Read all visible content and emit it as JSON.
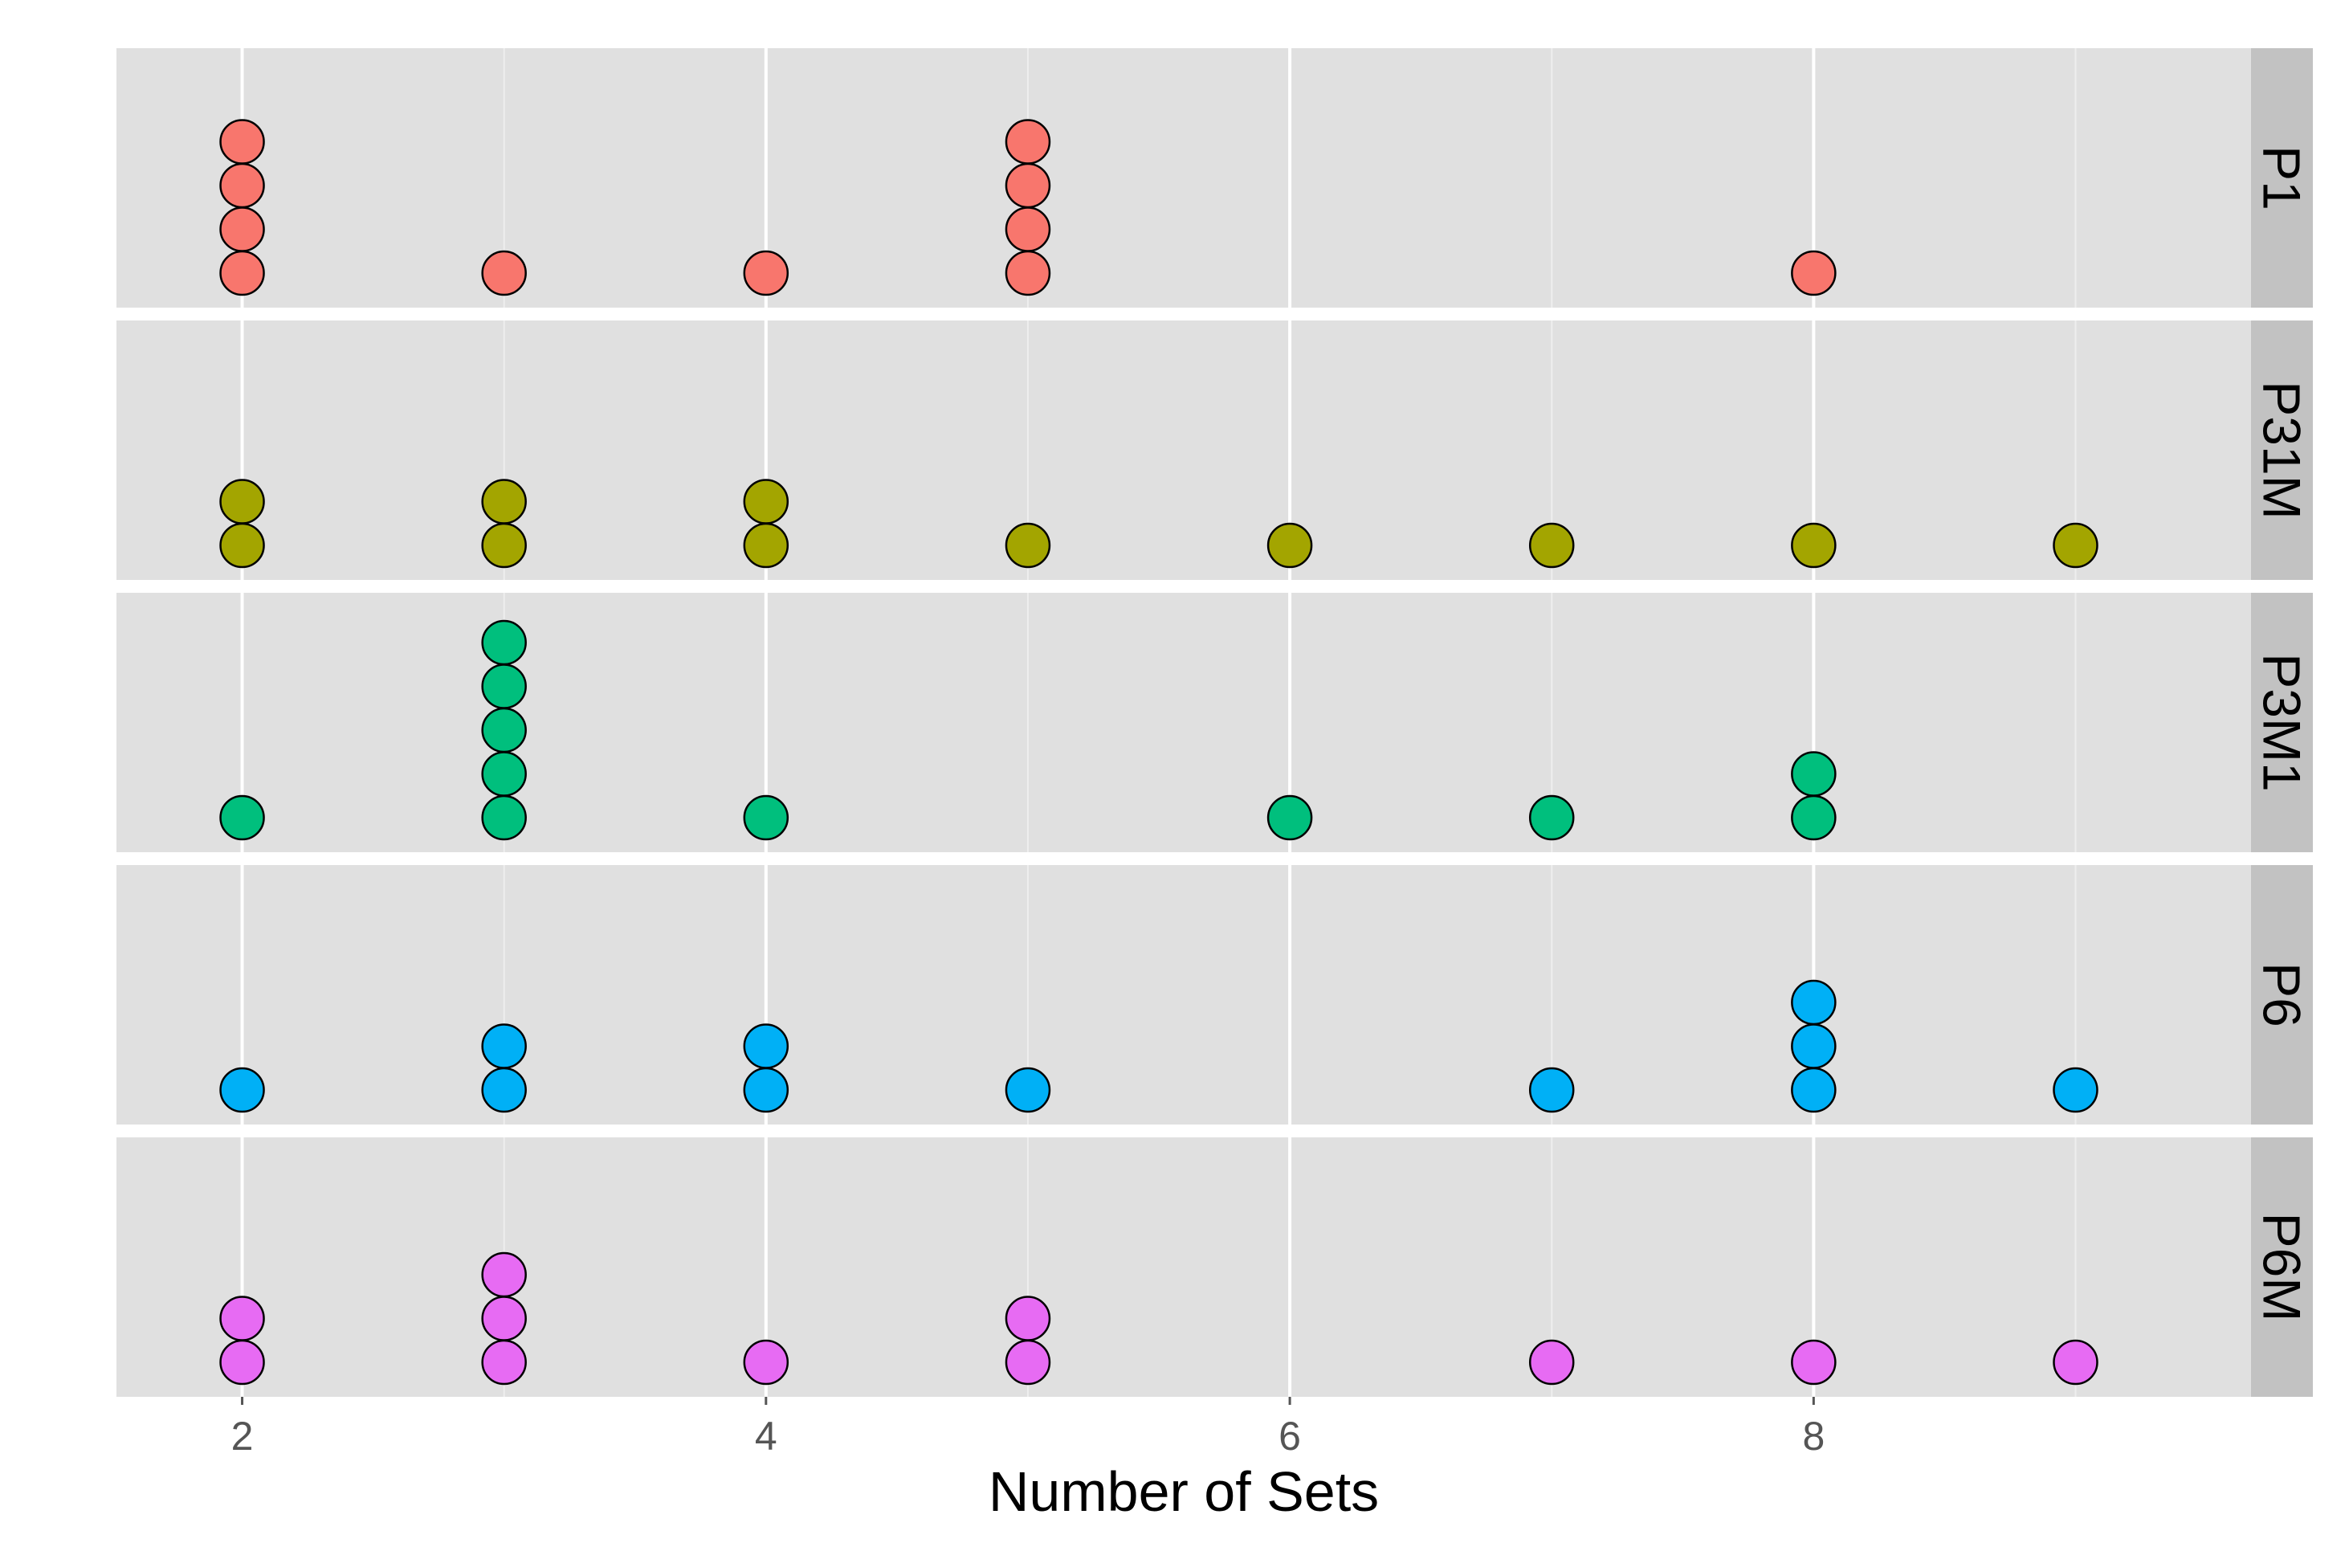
{
  "chart_data": {
    "type": "dotplot",
    "xlabel": "Number of Sets",
    "ylabel": "",
    "xlim": [
      1.52,
      9.67
    ],
    "x_ticks": [
      2,
      4,
      6,
      8
    ],
    "x_minor_ticks": [
      3,
      5,
      7,
      9
    ],
    "grid": true,
    "legend": "none",
    "facets": [
      {
        "name": "P1",
        "color": "#F8766D",
        "points": [
          {
            "x": 2,
            "count": 4
          },
          {
            "x": 3,
            "count": 1
          },
          {
            "x": 4,
            "count": 1
          },
          {
            "x": 5,
            "count": 4
          },
          {
            "x": 8,
            "count": 1
          }
        ]
      },
      {
        "name": "P31M",
        "color": "#A3A500",
        "points": [
          {
            "x": 2,
            "count": 2
          },
          {
            "x": 3,
            "count": 2
          },
          {
            "x": 4,
            "count": 2
          },
          {
            "x": 5,
            "count": 1
          },
          {
            "x": 6,
            "count": 1
          },
          {
            "x": 7,
            "count": 1
          },
          {
            "x": 8,
            "count": 1
          },
          {
            "x": 9,
            "count": 1
          }
        ]
      },
      {
        "name": "P3M1",
        "color": "#00BF7D",
        "points": [
          {
            "x": 2,
            "count": 1
          },
          {
            "x": 3,
            "count": 5
          },
          {
            "x": 4,
            "count": 1
          },
          {
            "x": 6,
            "count": 1
          },
          {
            "x": 7,
            "count": 1
          },
          {
            "x": 8,
            "count": 2
          }
        ]
      },
      {
        "name": "P6",
        "color": "#00B0F6",
        "points": [
          {
            "x": 2,
            "count": 1
          },
          {
            "x": 3,
            "count": 2
          },
          {
            "x": 4,
            "count": 2
          },
          {
            "x": 5,
            "count": 1
          },
          {
            "x": 7,
            "count": 1
          },
          {
            "x": 8,
            "count": 3
          },
          {
            "x": 9,
            "count": 1
          }
        ]
      },
      {
        "name": "P6M",
        "color": "#E76BF3",
        "points": [
          {
            "x": 2,
            "count": 2
          },
          {
            "x": 3,
            "count": 3
          },
          {
            "x": 4,
            "count": 1
          },
          {
            "x": 5,
            "count": 2
          },
          {
            "x": 7,
            "count": 1
          },
          {
            "x": 8,
            "count": 1
          },
          {
            "x": 9,
            "count": 1
          }
        ]
      }
    ],
    "colors": {
      "panel_bg": "#E0E0E0",
      "strip_bg": "#C2C2C2",
      "grid_major": "#FFFFFF",
      "grid_minor": "#EEEEEE",
      "dot_stroke": "#000000"
    }
  }
}
